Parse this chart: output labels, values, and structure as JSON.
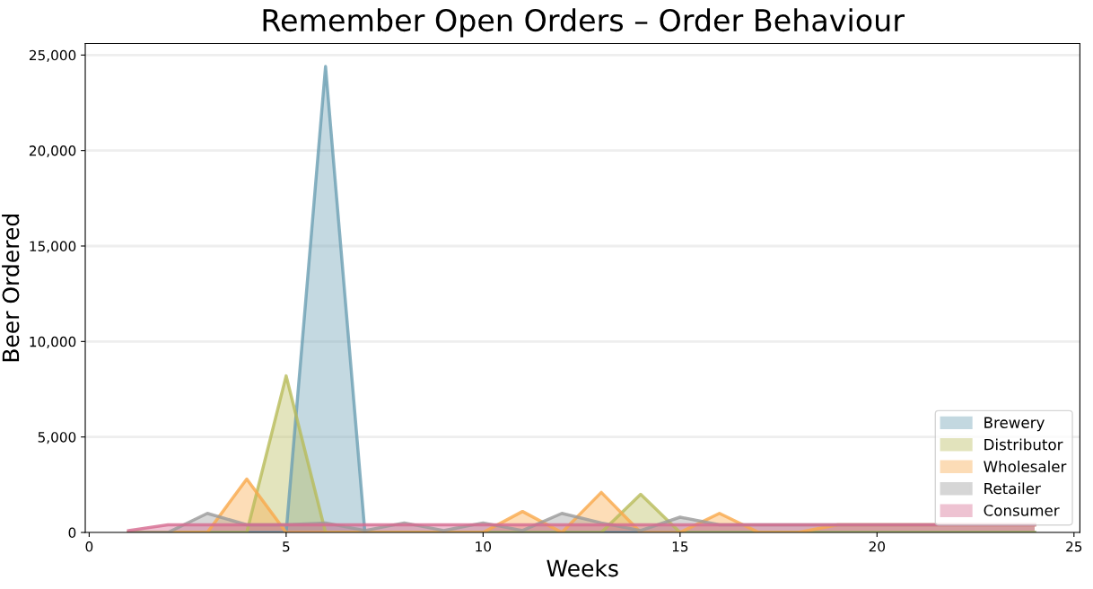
{
  "chart_data": {
    "type": "area",
    "title": "Remember Open Orders – Order Behaviour",
    "xlabel": "Weeks",
    "ylabel": "Beer Ordered",
    "x": [
      1,
      2,
      3,
      4,
      5,
      6,
      7,
      8,
      9,
      10,
      11,
      12,
      13,
      14,
      15,
      16,
      17,
      18,
      19,
      20,
      21,
      22,
      23,
      24
    ],
    "series": [
      {
        "name": "Brewery",
        "color": "#6b9fb3",
        "values": [
          0,
          0,
          0,
          0,
          0,
          24400,
          0,
          0,
          0,
          0,
          0,
          0,
          0,
          0,
          0,
          0,
          0,
          0,
          0,
          0,
          0,
          0,
          0,
          0
        ]
      },
      {
        "name": "Distributor",
        "color": "#b8bb5a",
        "values": [
          0,
          0,
          0,
          0,
          8200,
          0,
          0,
          0,
          0,
          0,
          0,
          0,
          0,
          2000,
          0,
          0,
          0,
          0,
          0,
          0,
          0,
          0,
          0,
          0
        ]
      },
      {
        "name": "Wholesaler",
        "color": "#f9a94b",
        "values": [
          0,
          0,
          0,
          2800,
          0,
          0,
          0,
          0,
          0,
          0,
          1100,
          0,
          2100,
          0,
          0,
          1000,
          0,
          0,
          400,
          400,
          400,
          400,
          400,
          400
        ]
      },
      {
        "name": "Retailer",
        "color": "#9a9a9a",
        "values": [
          0,
          0,
          1000,
          400,
          400,
          500,
          100,
          500,
          100,
          500,
          100,
          1000,
          500,
          100,
          800,
          400,
          400,
          400,
          400,
          400,
          400,
          400,
          400,
          400
        ]
      },
      {
        "name": "Consumer",
        "color": "#d66a90",
        "values": [
          100,
          400,
          400,
          400,
          400,
          400,
          400,
          400,
          400,
          400,
          400,
          400,
          400,
          400,
          400,
          400,
          400,
          400,
          400,
          400,
          400,
          400,
          400,
          400
        ]
      }
    ],
    "xlim": [
      -0.1,
      25.15
    ],
    "xticks": [
      0,
      5,
      10,
      15,
      20,
      25
    ],
    "ylim": [
      0,
      25600
    ],
    "yticks": [
      {
        "value": 0,
        "label": "0"
      },
      {
        "value": 5000,
        "label": "5,000"
      },
      {
        "value": 10000,
        "label": "10,000"
      },
      {
        "value": 15000,
        "label": "15,000"
      },
      {
        "value": 20000,
        "label": "20,000"
      },
      {
        "value": 25000,
        "label": "25,000"
      }
    ],
    "grid": "y",
    "legend": "bottom right"
  }
}
